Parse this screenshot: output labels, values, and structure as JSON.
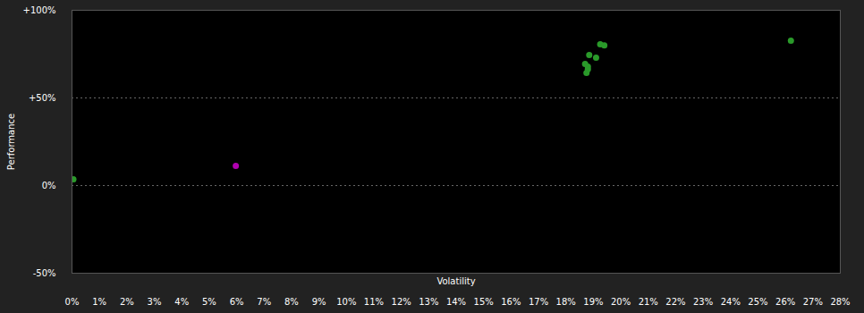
{
  "chart_data": {
    "type": "scatter",
    "xlabel": "Volatility",
    "ylabel": "Performance",
    "x": [
      0.05,
      18.7,
      18.85,
      18.8,
      18.8,
      18.75,
      19.1,
      19.25,
      19.4,
      26.2,
      5.97
    ],
    "values": [
      3.6,
      69.4,
      74.5,
      67.9,
      66.3,
      64.3,
      73.0,
      80.6,
      80.0,
      82.7,
      11.2
    ],
    "colors": [
      "#2a9a2a",
      "#2a9a2a",
      "#2a9a2a",
      "#2a9a2a",
      "#2a9a2a",
      "#2a9a2a",
      "#2a9a2a",
      "#2a9a2a",
      "#2a9a2a",
      "#2a9a2a",
      "#b000b0"
    ],
    "marker": "circle",
    "xlim": [
      0,
      28
    ],
    "ylim": [
      -50,
      100
    ],
    "xticks": [
      {
        "value": 0,
        "label": "0%"
      },
      {
        "value": 1,
        "label": "1%"
      },
      {
        "value": 2,
        "label": "2%"
      },
      {
        "value": 3,
        "label": "3%"
      },
      {
        "value": 4,
        "label": "4%"
      },
      {
        "value": 5,
        "label": "5%"
      },
      {
        "value": 6,
        "label": "6%"
      },
      {
        "value": 7,
        "label": "7%"
      },
      {
        "value": 8,
        "label": "8%"
      },
      {
        "value": 9,
        "label": "9%"
      },
      {
        "value": 10,
        "label": "10%"
      },
      {
        "value": 11,
        "label": "11%"
      },
      {
        "value": 12,
        "label": "12%"
      },
      {
        "value": 13,
        "label": "13%"
      },
      {
        "value": 14,
        "label": "14%"
      },
      {
        "value": 15,
        "label": "15%"
      },
      {
        "value": 16,
        "label": "16%"
      },
      {
        "value": 17,
        "label": "17%"
      },
      {
        "value": 18,
        "label": "18%"
      },
      {
        "value": 19,
        "label": "19%"
      },
      {
        "value": 20,
        "label": "20%"
      },
      {
        "value": 21,
        "label": "21%"
      },
      {
        "value": 22,
        "label": "22%"
      },
      {
        "value": 23,
        "label": "23%"
      },
      {
        "value": 24,
        "label": "24%"
      },
      {
        "value": 25,
        "label": "25%"
      },
      {
        "value": 26,
        "label": "26%"
      },
      {
        "value": 27,
        "label": "27%"
      },
      {
        "value": 28,
        "label": "28%"
      }
    ],
    "yticks": [
      {
        "value": -50,
        "label": "-50%"
      },
      {
        "value": 0,
        "label": "0%"
      },
      {
        "value": 50,
        "label": "+50%"
      },
      {
        "value": 100,
        "label": "+100%"
      }
    ],
    "grid": true
  }
}
